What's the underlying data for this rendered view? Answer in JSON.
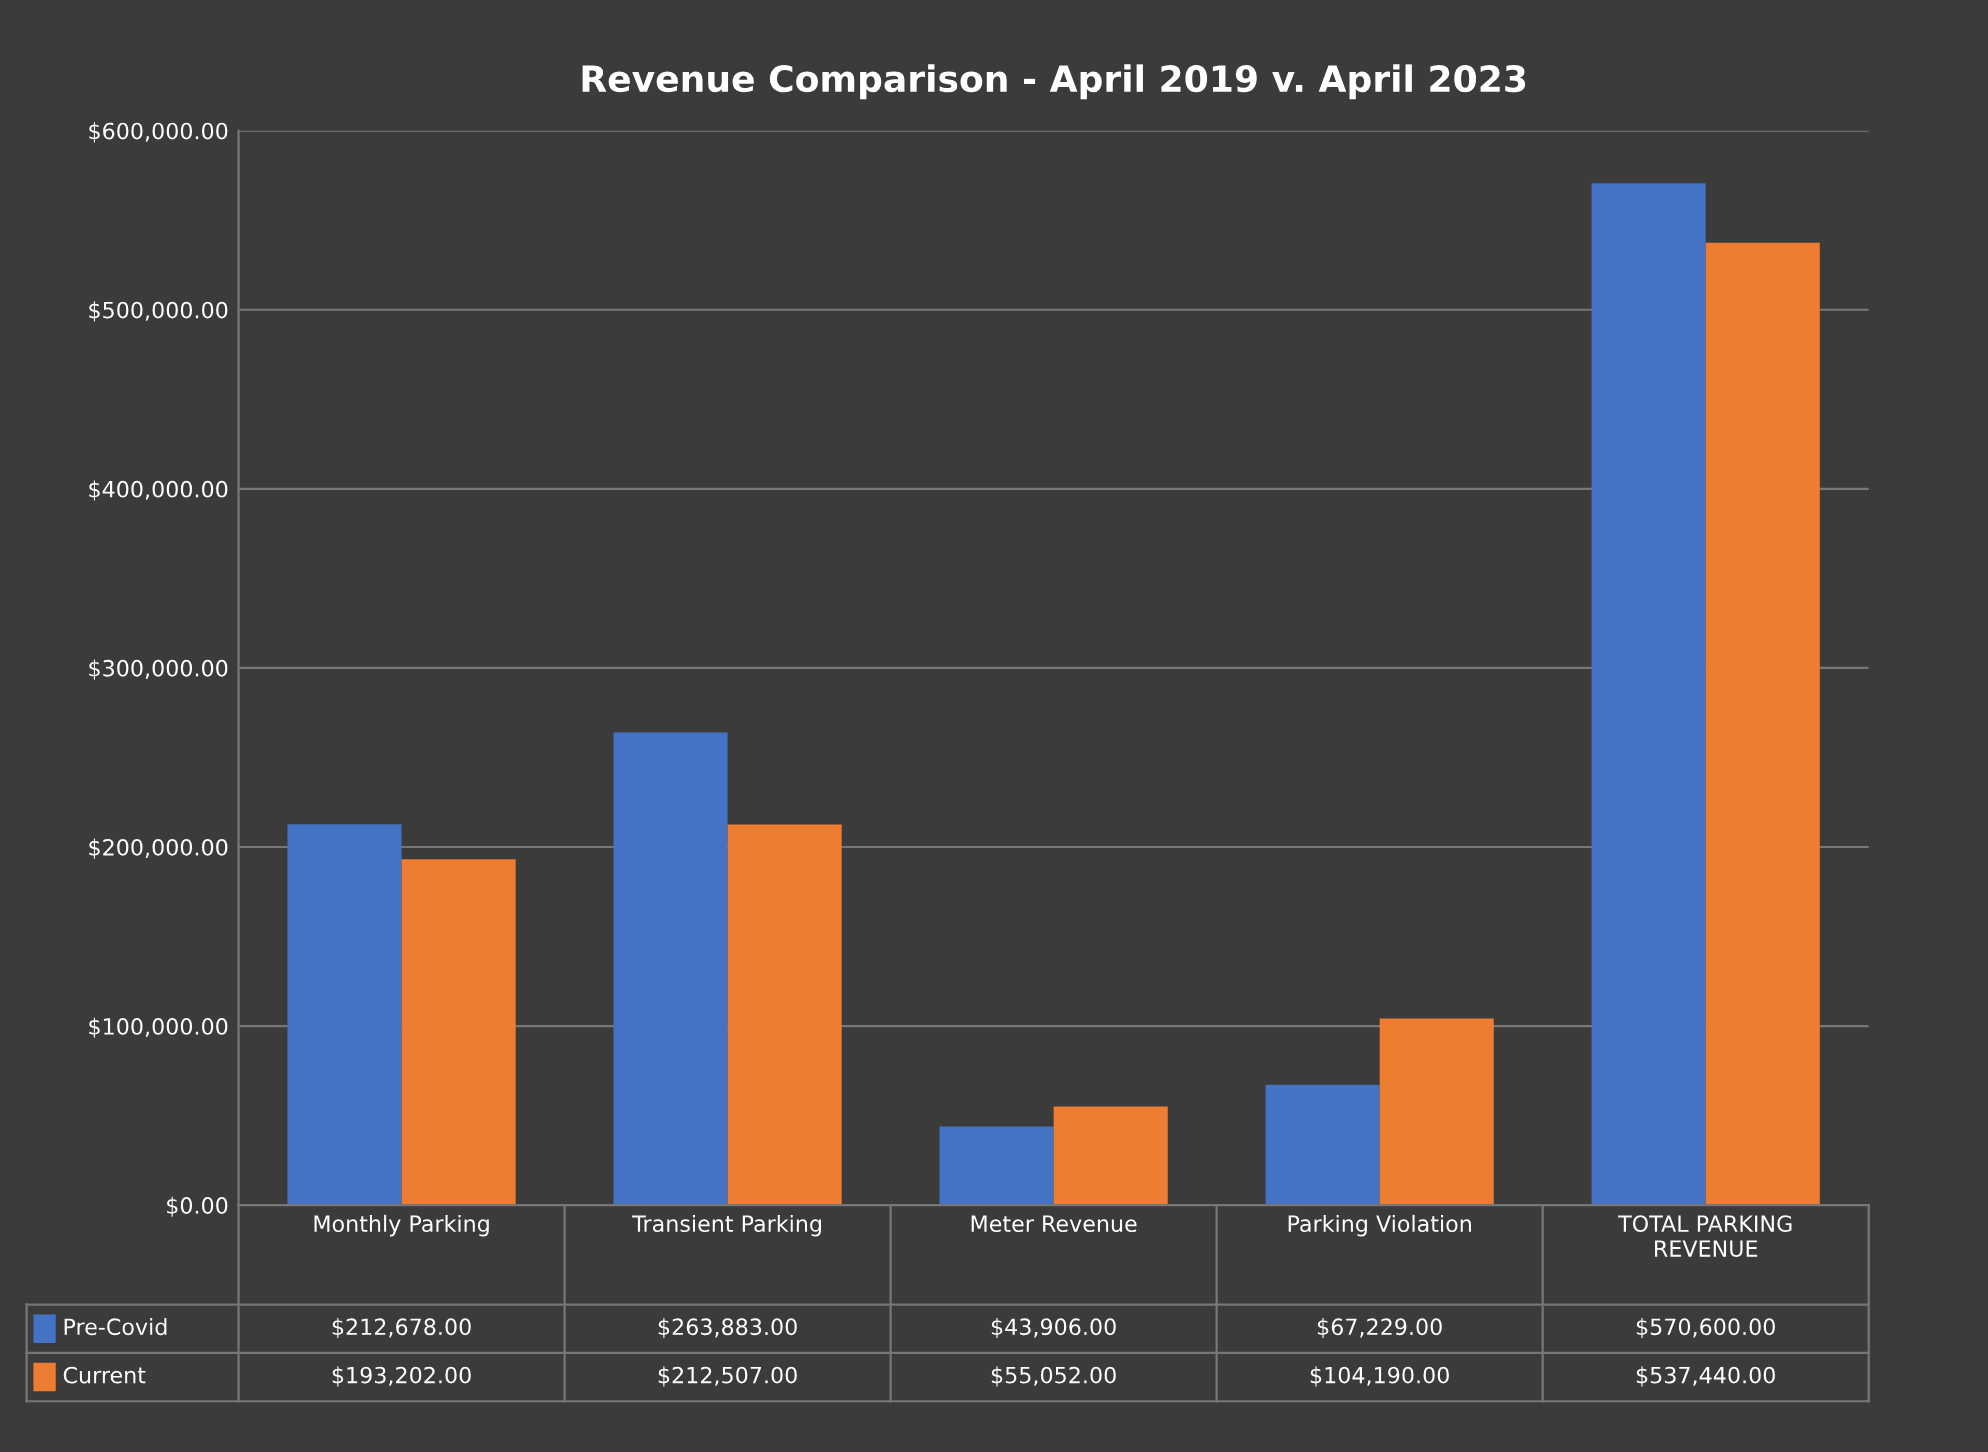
{
  "chart_data": {
    "type": "bar",
    "title": "Revenue Comparison - April 2019 v. April 2023",
    "categories": [
      "Monthly Parking",
      "Transient Parking",
      "Meter Revenue",
      "Parking Violation",
      "TOTAL PARKING\nREVENUE"
    ],
    "series": [
      {
        "name": "Pre-Covid",
        "color": "#4472c4",
        "values": [
          212678,
          263883,
          43906,
          67229,
          570600
        ],
        "value_labels": [
          "$212,678.00",
          "$263,883.00",
          "$43,906.00",
          "$67,229.00",
          "$570,600.00"
        ]
      },
      {
        "name": "Current",
        "color": "#ed7d31",
        "values": [
          193202,
          212507,
          55052,
          104190,
          537440
        ],
        "value_labels": [
          "$193,202.00",
          "$212,507.00",
          "$55,052.00",
          "$104,190.00",
          "$537,440.00"
        ]
      }
    ],
    "ylim": [
      0,
      600000
    ],
    "yticks": [
      {
        "value": 0,
        "label": "$0.00"
      },
      {
        "value": 100000,
        "label": "$100,000.00"
      },
      {
        "value": 200000,
        "label": "$200,000.00"
      },
      {
        "value": 300000,
        "label": "$300,000.00"
      },
      {
        "value": 400000,
        "label": "$400,000.00"
      },
      {
        "value": 500000,
        "label": "$500,000.00"
      },
      {
        "value": 600000,
        "label": "$600,000.00"
      }
    ],
    "grid": "y",
    "legend": "bottom"
  }
}
